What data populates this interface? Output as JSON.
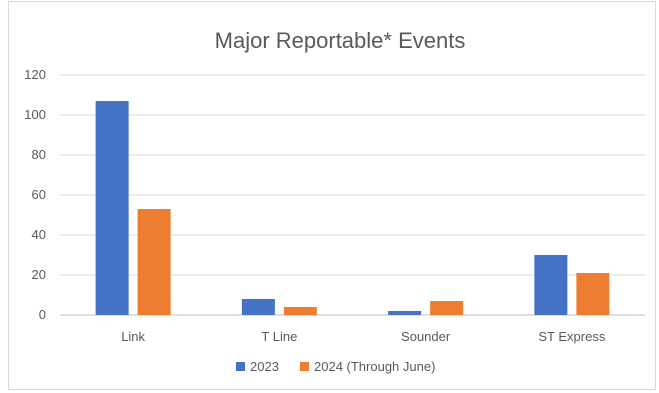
{
  "chart_data": {
    "type": "bar",
    "title": "Major Reportable* Events",
    "xlabel": "",
    "ylabel": "",
    "ylim": [
      0,
      120
    ],
    "yticks": [
      0,
      20,
      40,
      60,
      80,
      100,
      120
    ],
    "categories": [
      "Link",
      "T Line",
      "Sounder",
      "ST Express"
    ],
    "series": [
      {
        "name": "2023",
        "values": [
          107,
          8,
          2,
          30
        ],
        "color": "#4472C4"
      },
      {
        "name": "2024 (Through June)",
        "values": [
          53,
          4,
          7,
          21
        ],
        "color": "#ED7D31"
      }
    ],
    "grid": true,
    "legend": "bottom"
  }
}
